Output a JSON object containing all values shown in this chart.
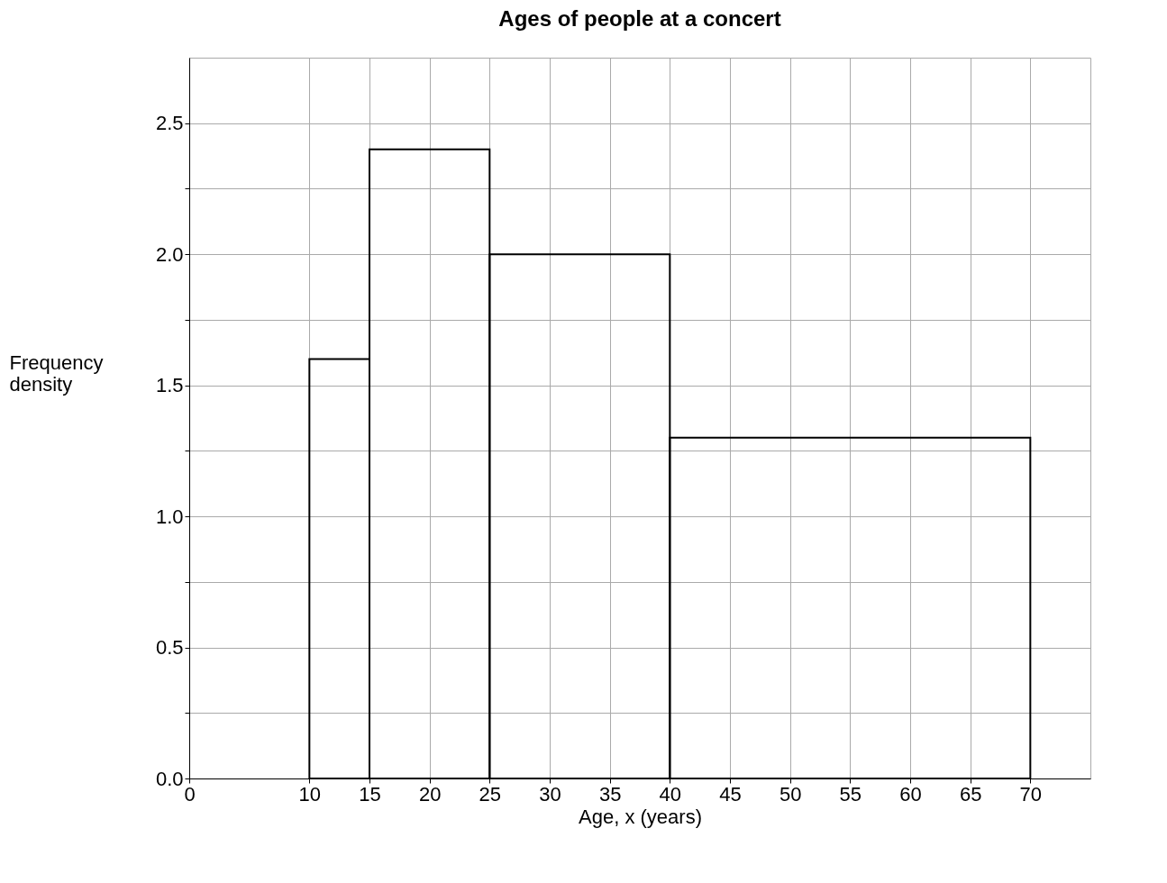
{
  "chart_data": {
    "type": "histogram",
    "title": "Ages of people at a concert",
    "xlabel": "Age, x (years)",
    "ylabel": "Frequency density",
    "bins": [
      10,
      15,
      25,
      40,
      70
    ],
    "values": [
      1.6,
      2.4,
      2.0,
      1.3
    ],
    "color": "#000000",
    "xlim": [
      0,
      75
    ],
    "xticks": [
      0,
      10,
      15,
      20,
      25,
      30,
      35,
      40,
      45,
      50,
      55,
      60,
      65,
      70
    ],
    "ylim": [
      0,
      2.75
    ],
    "yticks": [
      {
        "value": 0,
        "label": "0.0"
      },
      {
        "value": 0.25,
        "label": null
      },
      {
        "value": 0.5,
        "label": "0.5"
      },
      {
        "value": 0.75,
        "label": null
      },
      {
        "value": 1,
        "label": "1.0"
      },
      {
        "value": 1.25,
        "label": null
      },
      {
        "value": 1.5,
        "label": "1.5"
      },
      {
        "value": 1.75,
        "label": null
      },
      {
        "value": 2,
        "label": "2.0"
      },
      {
        "value": 2.25,
        "label": null
      },
      {
        "value": 2.5,
        "label": "2.5"
      }
    ],
    "grid": true
  }
}
